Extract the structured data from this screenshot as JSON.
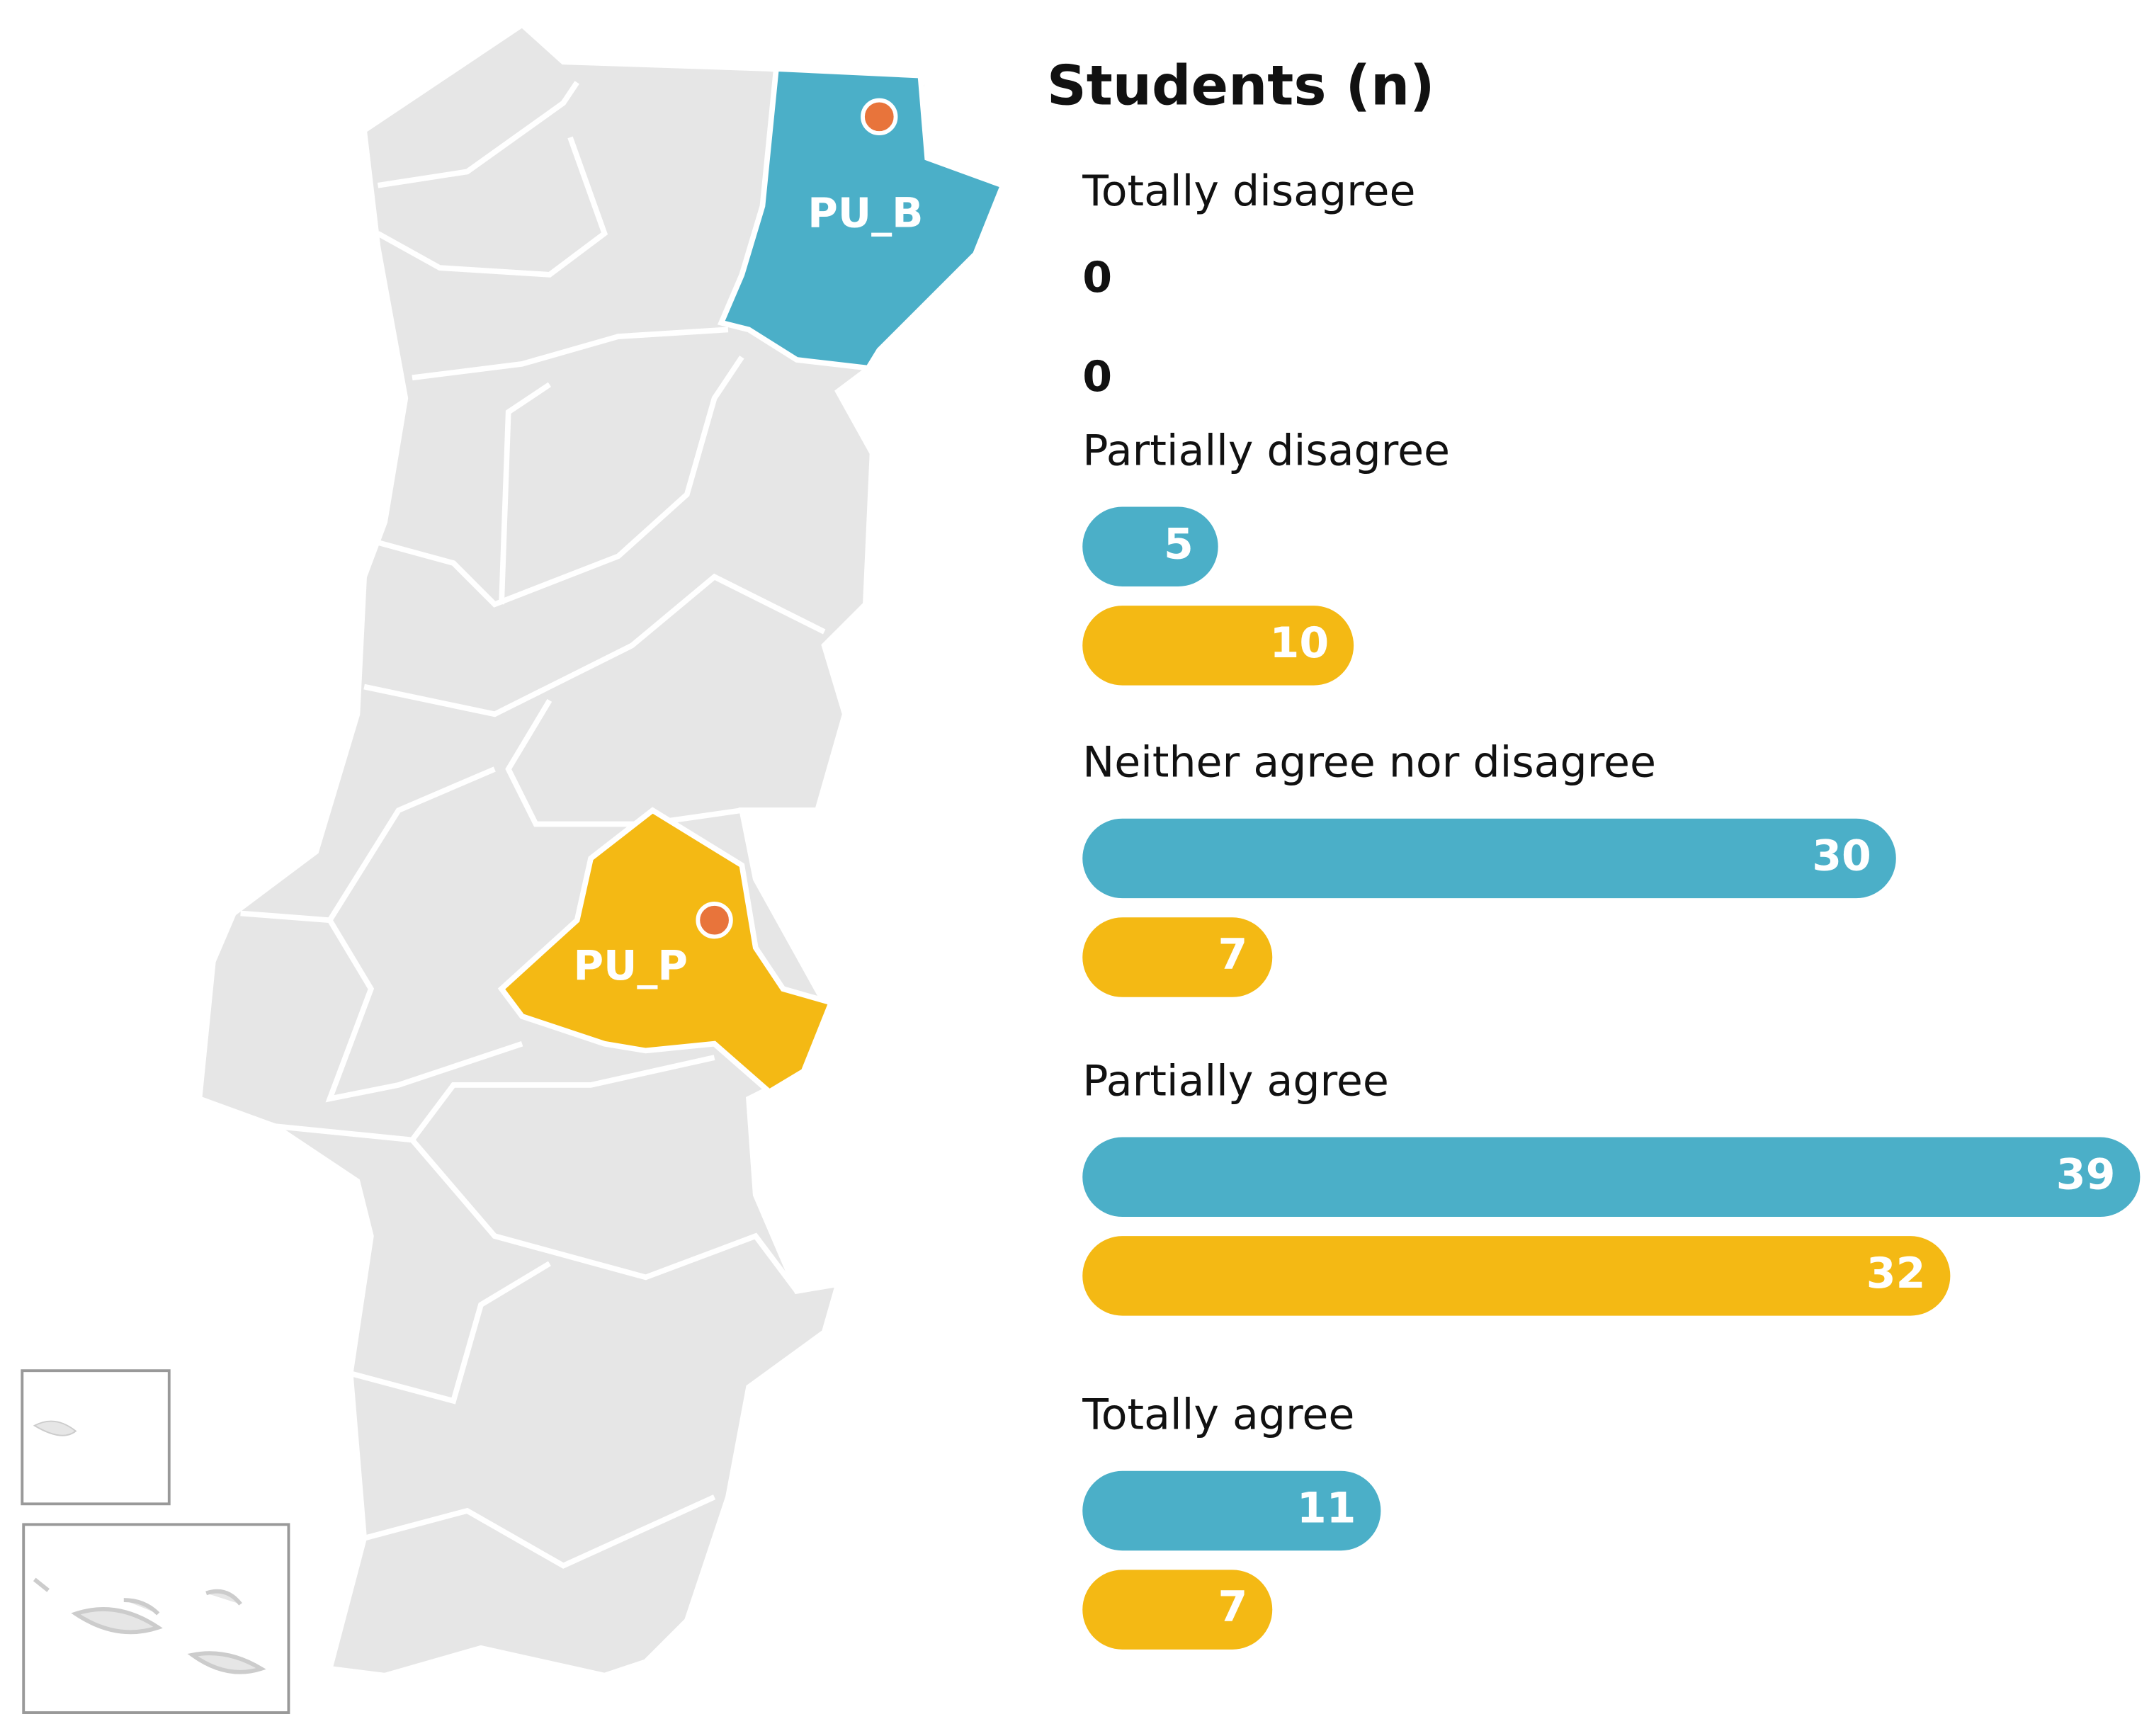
{
  "chart_data": {
    "type": "bar",
    "orientation": "horizontal",
    "title": "Students (n)",
    "categories": [
      "Totally disagree",
      "Partially disagree",
      "Neither agree nor disagree",
      "Partially agree",
      "Totally agree"
    ],
    "series": [
      {
        "name": "PU_B",
        "color": "#4bafc8",
        "values": [
          0,
          5,
          30,
          39,
          11
        ]
      },
      {
        "name": "PU_P",
        "color": "#f4b914",
        "values": [
          0,
          10,
          7,
          32,
          7
        ]
      }
    ]
  }
}
